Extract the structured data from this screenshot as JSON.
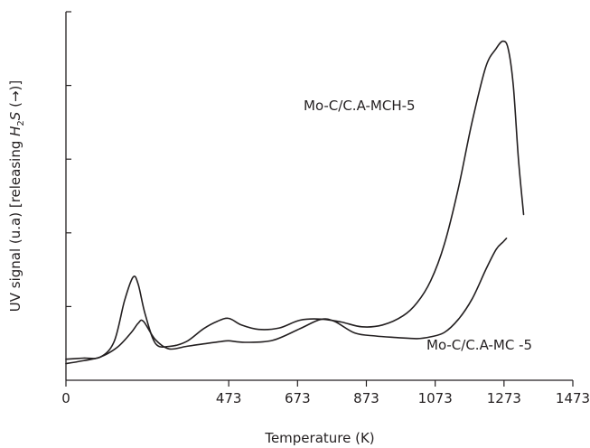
{
  "chart_data": {
    "type": "line",
    "xlabel": "Temperature (K)",
    "ylabel_parts": {
      "prefix": "UV signal (u.a) [releasing ",
      "H": "H",
      "sub": "2",
      "S": "S",
      "suffix": " (→)]"
    },
    "xlim": [
      0,
      1473
    ],
    "x_ticks": [
      0,
      473,
      673,
      873,
      1073,
      1273,
      1473
    ],
    "x_tick_labels": [
      "0",
      "473",
      "673",
      "873",
      "1073",
      "1273",
      "1473"
    ],
    "ylim": [
      0,
      100
    ],
    "y_ticks": [
      20,
      40,
      60,
      80,
      100
    ],
    "y_tick_labels": [],
    "grid": false,
    "series": [
      {
        "name": "Mo-C/C.A-MCH-5",
        "x": [
          0,
          50,
          100,
          140,
          170,
          195,
          210,
          230,
          260,
          300,
          350,
          400,
          440,
          473,
          510,
          560,
          620,
          680,
          740,
          800,
          860,
          920,
          980,
          1020,
          1060,
          1100,
          1140,
          1180,
          1220,
          1250,
          1270,
          1285,
          1300,
          1315,
          1330
        ],
        "y": [
          5.7,
          6.0,
          6.3,
          10.5,
          21.5,
          28.0,
          26.0,
          18.0,
          10.0,
          9.2,
          10.5,
          14.0,
          16.0,
          16.8,
          15.0,
          13.8,
          14.2,
          16.3,
          16.6,
          15.8,
          14.5,
          15.0,
          17.5,
          21.0,
          27.0,
          37.0,
          52.0,
          70.0,
          85.0,
          90.0,
          92.0,
          90.0,
          80.0,
          60.0,
          45.0
        ]
      },
      {
        "name": "Mo-C/C.A-MC -5",
        "x": [
          0,
          50,
          100,
          150,
          190,
          210,
          225,
          260,
          300,
          350,
          410,
          450,
          473,
          520,
          600,
          680,
          740,
          780,
          840,
          900,
          960,
          1020,
          1060,
          1100,
          1140,
          1180,
          1220,
          1250,
          1270,
          1280
        ],
        "y": [
          4.5,
          5.3,
          6.3,
          9.0,
          13.0,
          15.5,
          16.0,
          11.0,
          8.5,
          9.2,
          10.0,
          10.5,
          10.7,
          10.3,
          10.8,
          14.0,
          16.5,
          16.0,
          12.8,
          12.0,
          11.6,
          11.3,
          11.8,
          13.0,
          16.5,
          22.0,
          30.0,
          35.5,
          37.5,
          38.5
        ]
      }
    ],
    "annotations": [
      {
        "text": "Mo-C/C.A-MCH-5",
        "series": 0
      },
      {
        "text": "Mo-C/C.A-MC -5",
        "series": 1
      }
    ]
  }
}
